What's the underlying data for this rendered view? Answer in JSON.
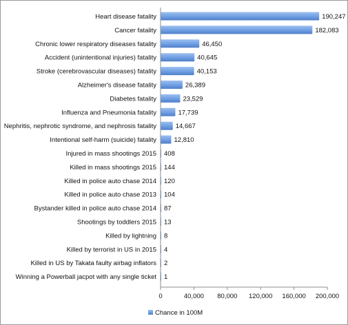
{
  "chart_data": {
    "type": "bar",
    "orientation": "horizontal",
    "categories": [
      "Heart disease fatality",
      "Cancer fatality",
      "Chronic lower respiratory diseases fatality",
      "Accident (unintentional injuries) fatality",
      "Stroke (cerebrovascular diseases) fatality",
      "Alzheimer's disease fatality",
      "Diabetes fatality",
      "Influenza and Pneumonia fatality",
      "Nephritis, nephrotic syndrome, and nephrosis fatality",
      "Intentional self-harm (suicide) fatality",
      "Injured in mass shootings 2015",
      "Killed in mass shootings 2015",
      "Killed in police auto chase 2014",
      "Killed in police auto chase 2013",
      "Bystander killed in police auto chase 2014",
      "Shootings by toddlers 2015",
      "Killed by lightning",
      "Killed by terrorist in US in 2015",
      "Killed in US by Takata faulty airbag inflators",
      "Winning a Powerball jacpot with any single ticket"
    ],
    "series": [
      {
        "name": "Chance in 100M",
        "values": [
          190247,
          182083,
          46450,
          40645,
          40153,
          26389,
          23529,
          17739,
          14667,
          12810,
          408,
          144,
          120,
          104,
          87,
          13,
          8,
          4,
          2,
          1
        ],
        "value_labels": [
          "190,247",
          "182,083",
          "46,450",
          "40,645",
          "40,153",
          "26,389",
          "23,529",
          "17,739",
          "14,667",
          "12,810",
          "408",
          "144",
          "120",
          "104",
          "87",
          "13",
          "8",
          "4",
          "2",
          "1"
        ]
      }
    ],
    "xlim": [
      0,
      200000
    ],
    "x_ticks": [
      0,
      40000,
      80000,
      120000,
      160000,
      200000
    ],
    "x_tick_labels": [
      "0",
      "40,000",
      "80,000",
      "120,000",
      "160,000",
      "200,000"
    ],
    "grid": false,
    "legend_position": "bottom",
    "bar_color": "#6f9ee3"
  }
}
